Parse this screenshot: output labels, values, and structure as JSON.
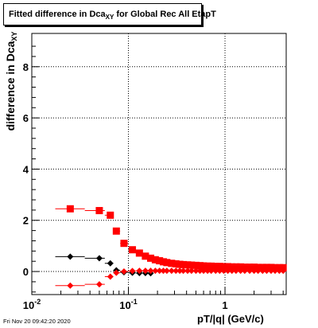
{
  "header": {
    "title_prefix": "Fitted difference in Dca",
    "title_sub": "XY",
    "title_suffix": " for Global Rec All EtapT"
  },
  "footer": {
    "timestamp": "Fri Nov 20 09:42:20 2020"
  },
  "chart_data": {
    "type": "scatter",
    "title": "Fitted difference in Dca_XY for Global Rec All EtapT",
    "ylabel_prefix": "difference in Dca",
    "ylabel_sub": "XY",
    "xlabel": "pT/|q| (GeV/c)",
    "xscale": "log",
    "xlim": [
      0.01,
      4.3
    ],
    "ylim": [
      -0.9,
      9.3
    ],
    "grid": true,
    "x_ticks": [
      {
        "value": 0.01,
        "base": "10",
        "exp": "-2"
      },
      {
        "value": 0.1,
        "base": "10",
        "exp": "-1"
      },
      {
        "value": 1,
        "base": "1",
        "exp": ""
      }
    ],
    "y_ticks": [
      0,
      2,
      4,
      6,
      8
    ],
    "series": [
      {
        "color": "#ff0000",
        "marker": "square",
        "x": [
          0.025,
          0.05,
          0.065,
          0.075,
          0.09,
          0.11,
          0.13,
          0.15,
          0.17,
          0.19,
          0.21,
          0.23,
          0.25,
          0.28,
          0.31,
          0.34,
          0.37,
          0.41,
          0.45,
          0.5,
          0.55,
          0.6,
          0.66,
          0.72,
          0.8,
          0.88,
          0.97,
          1.07,
          1.18,
          1.3,
          1.45,
          1.6,
          1.8,
          2.0,
          2.2,
          2.45,
          2.7,
          3.0,
          3.3,
          3.65,
          4.0
        ],
        "y": [
          2.45,
          2.38,
          2.2,
          1.58,
          1.1,
          0.85,
          0.72,
          0.6,
          0.52,
          0.46,
          0.42,
          0.38,
          0.35,
          0.32,
          0.3,
          0.28,
          0.27,
          0.26,
          0.25,
          0.24,
          0.23,
          0.22,
          0.21,
          0.21,
          0.2,
          0.2,
          0.19,
          0.19,
          0.18,
          0.18,
          0.18,
          0.17,
          0.17,
          0.17,
          0.16,
          0.16,
          0.16,
          0.16,
          0.15,
          0.15,
          0.15
        ]
      },
      {
        "color": "#000000",
        "marker": "diamond",
        "x": [
          0.025,
          0.05,
          0.065,
          0.075,
          0.09,
          0.11,
          0.13,
          0.15,
          0.17
        ],
        "y": [
          0.58,
          0.52,
          0.32,
          0.05,
          -0.03,
          -0.05,
          -0.06,
          -0.06,
          -0.07
        ]
      },
      {
        "color": "#ff0000",
        "marker": "diamond",
        "x": [
          0.025,
          0.05,
          0.065,
          0.075,
          0.09,
          0.11,
          0.13,
          0.15,
          0.17,
          0.19,
          0.21,
          0.23,
          0.25,
          0.28,
          0.31,
          0.34,
          0.37,
          0.41,
          0.45,
          0.5,
          0.55,
          0.6,
          0.66,
          0.72,
          0.8,
          0.88,
          0.97,
          1.07,
          1.18,
          1.3,
          1.45,
          1.6,
          1.8,
          2.0,
          2.2,
          2.45,
          2.7,
          3.0,
          3.3,
          3.65,
          4.0
        ],
        "y": [
          -0.55,
          -0.5,
          -0.2,
          -0.05,
          0.0,
          0.02,
          0.03,
          0.03,
          0.03,
          0.03,
          0.03,
          0.03,
          0.03,
          0.03,
          0.03,
          0.03,
          0.03,
          0.03,
          0.03,
          0.03,
          0.03,
          0.03,
          0.03,
          0.03,
          0.03,
          0.03,
          0.03,
          0.03,
          0.03,
          0.03,
          0.03,
          0.03,
          0.03,
          0.03,
          0.03,
          0.03,
          0.03,
          0.03,
          0.03,
          0.03,
          0.03
        ]
      }
    ]
  }
}
